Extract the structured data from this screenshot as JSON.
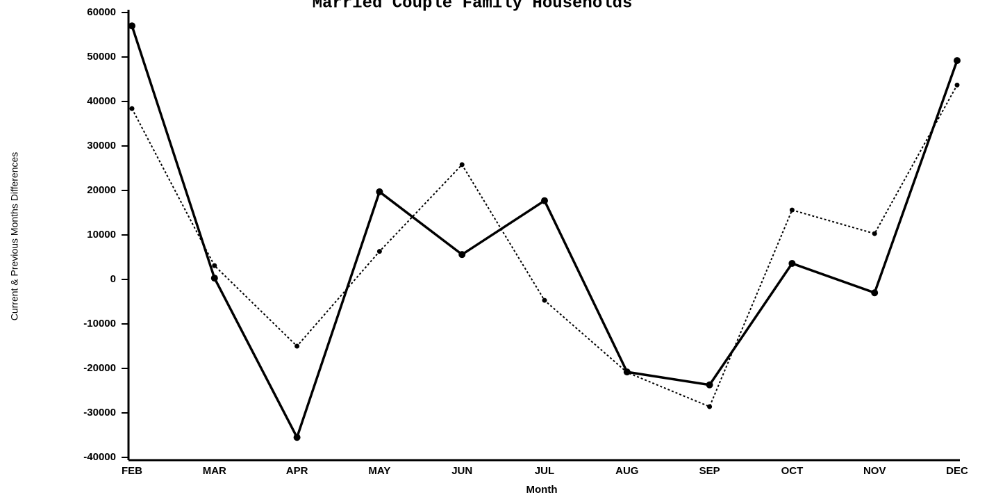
{
  "chart_data": {
    "type": "line",
    "title": "Married Couple Family Households",
    "x_label": "Month",
    "y_label": "Current & Previous Months Differences",
    "categories": [
      "FEB",
      "MAR",
      "APR",
      "MAY",
      "JUN",
      "JUL",
      "AUG",
      "SEP",
      "OCT",
      "NOV",
      "DEC"
    ],
    "series": [
      {
        "color": "#000000",
        "line_style": "solid",
        "values": [
          57000,
          300,
          -35500,
          19700,
          5600,
          17700,
          -20800,
          -23700,
          3600,
          -3000,
          49200
        ]
      },
      {
        "color": "#000000",
        "line_style": "dotted",
        "values": [
          38400,
          3100,
          -15000,
          6300,
          25800,
          -4700,
          -20900,
          -28600,
          15600,
          10300,
          43700
        ]
      }
    ],
    "ylim": [
      -40000,
      60000
    ],
    "yticks": [
      -40000,
      -30000,
      -20000,
      -10000,
      0,
      10000,
      20000,
      30000,
      40000,
      50000,
      60000
    ],
    "grid": false
  }
}
